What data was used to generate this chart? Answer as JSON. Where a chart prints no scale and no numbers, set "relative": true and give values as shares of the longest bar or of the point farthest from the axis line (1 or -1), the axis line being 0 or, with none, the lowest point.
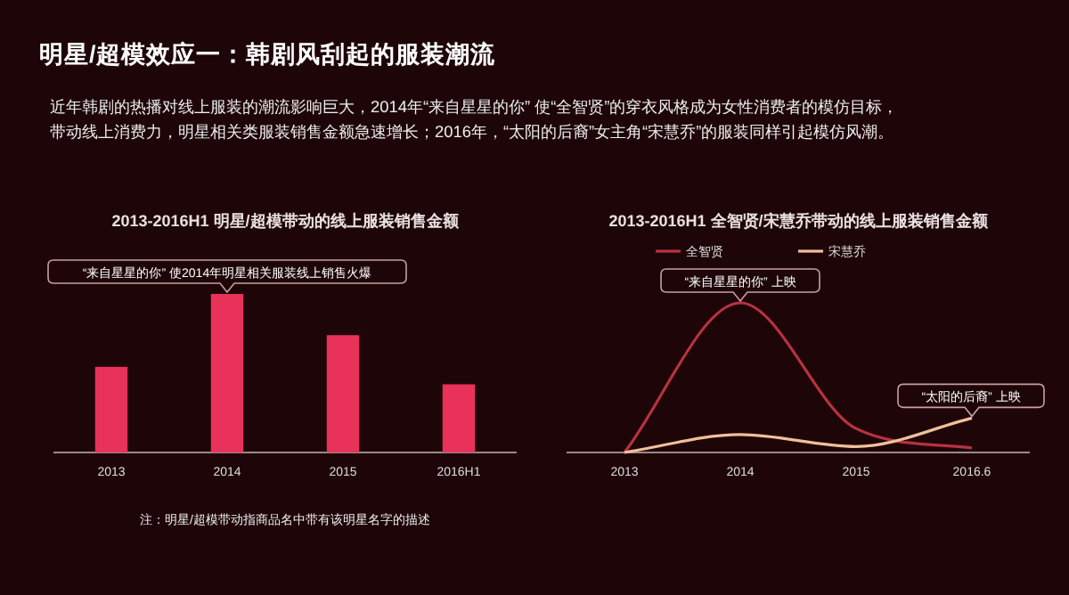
{
  "chart_data": [
    {
      "type": "bar",
      "title": "2013-2016H1 明星/超模带动的线上服装销售金额",
      "relative": true,
      "legend": false,
      "grid": false,
      "categories": [
        "2013",
        "2014",
        "2015",
        "2016H1"
      ],
      "series": [
        {
          "color": "#e8325a",
          "values": [
            0.54,
            1,
            0.74,
            0.43
          ]
        }
      ],
      "annotations": [
        "明星/超模效应一：韩剧风刮起的服装潮流",
        "近年韩剧的热播对线上服装的潮流影响巨大，2014年“来自星星的你” 使“全智贤”的穿衣风格成为女性消费者的模仿目标，",
        "带动线上消费力，明星相关类服装销售金额急速增长；2016年，“太阳的后裔”女主角“宋慧乔”的服装同样引起模仿风潮。",
        {
          "text": "“来自星星的你” 使2014年明星相关服装线上销售火爆",
          "x": "2014",
          "y": 1
        },
        "注：明星/超模带动指商品名中带有该明星名字的描述"
      ]
    },
    {
      "type": "line",
      "title": "2013-2016H1 全智贤/宋慧乔带动的线上服装销售金额",
      "relative": true,
      "legend": "top",
      "grid": false,
      "marker": "none",
      "line_style": "solid",
      "categories": [
        "2013",
        "2014",
        "2015",
        "2016.6"
      ],
      "series": [
        {
          "name": "全智贤",
          "color": "#b8323f",
          "values": [
            0,
            1,
            0.16,
            0.03
          ]
        },
        {
          "name": "宋慧乔",
          "color": "#f0c09a",
          "values": [
            0,
            0.12,
            0.04,
            0.23
          ]
        }
      ],
      "annotations": [
        {
          "text": "“来自星星的你” 上映",
          "x": "2014",
          "y": 1
        },
        {
          "text": "“太阳的后裔” 上映",
          "x": "2016.6",
          "y": 0.23
        }
      ]
    }
  ]
}
